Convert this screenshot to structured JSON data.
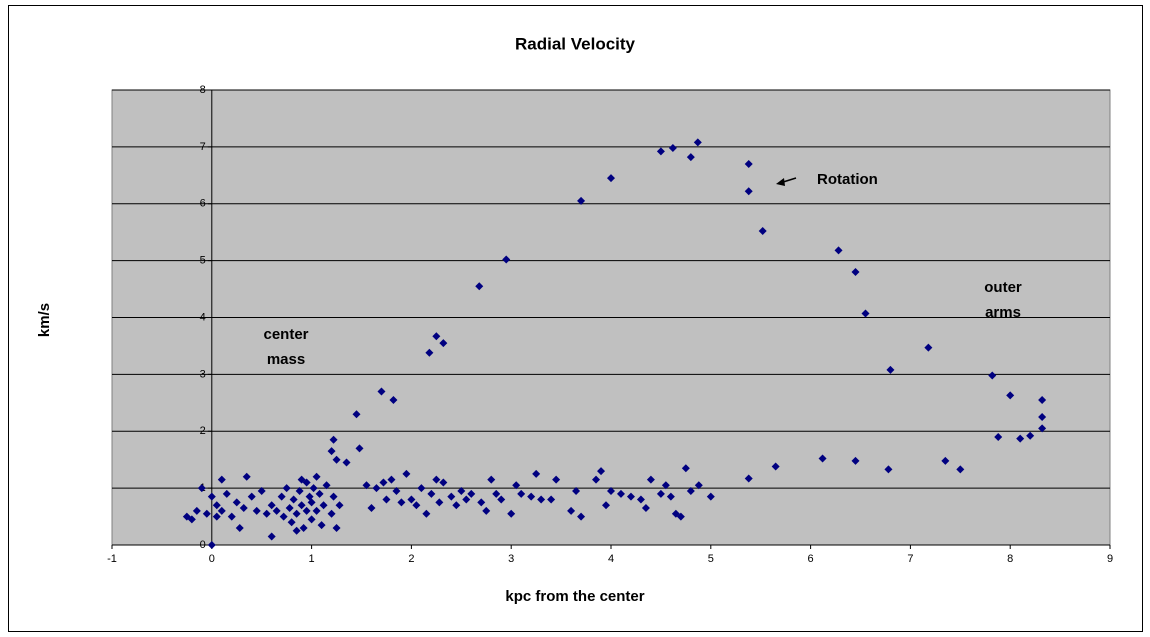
{
  "chart_data": {
    "type": "scatter",
    "title": "Radial Velocity",
    "xlabel": "kpc from the center",
    "ylabel": "km/s",
    "xlim": [
      -1,
      9
    ],
    "xticks": [
      -1,
      0,
      1,
      2,
      3,
      4,
      5,
      6,
      7,
      8,
      9
    ],
    "ylim": [
      0,
      8
    ],
    "yticks": [
      0,
      1,
      2,
      3,
      4,
      5,
      6,
      7,
      8
    ],
    "grid": true,
    "annotations": [
      {
        "text": "Rotation"
      },
      {
        "lines": [
          "outer",
          "arms"
        ]
      },
      {
        "lines": [
          "center",
          "mass"
        ]
      }
    ],
    "series": [
      {
        "color": "#000080",
        "x": [
          1.22,
          1.2,
          1.25,
          1.35,
          1.45,
          1.48,
          1.7,
          1.82,
          2.18,
          2.25,
          2.32,
          2.68,
          2.95,
          3.7,
          4.0,
          4.5,
          4.62,
          4.8,
          4.87,
          5.38,
          5.38,
          5.52,
          6.28,
          6.45,
          6.55,
          6.8,
          7.18,
          7.82,
          8.0,
          7.88,
          8.1,
          8.2,
          8.32,
          8.32,
          8.32,
          5.38,
          5.65,
          6.12,
          6.45,
          6.78,
          7.35,
          7.5,
          0,
          0.6,
          1.55,
          1.6,
          1.65,
          1.72,
          1.75,
          1.8,
          1.85,
          1.9,
          1.95,
          2.0,
          2.05,
          2.1,
          2.15,
          2.2,
          2.25,
          2.28,
          2.32,
          2.4,
          2.45,
          2.5,
          2.55,
          2.6,
          2.7,
          2.75,
          2.8,
          2.85,
          2.9,
          3.0,
          3.05,
          3.1,
          3.2,
          3.25,
          3.3,
          3.4,
          3.45,
          3.6,
          3.65,
          3.7,
          3.85,
          3.9,
          3.95,
          4.0,
          4.1,
          4.2,
          4.3,
          4.35,
          4.4,
          4.5,
          4.55,
          4.6,
          4.65,
          4.7,
          4.75,
          4.8,
          4.88,
          5.0,
          -0.25,
          -0.2,
          -0.15,
          -0.1,
          -0.05,
          0,
          0.05,
          0.05,
          0.1,
          0.1,
          0.15,
          0.2,
          0.25,
          0.28,
          0.32,
          0.35,
          0.4,
          0.45,
          0.5,
          0.55,
          0.6,
          0.65,
          0.7,
          0.72,
          0.75,
          0.78,
          0.8,
          0.82,
          0.85,
          0.88,
          0.9,
          0.92,
          0.95,
          0.95,
          0.98,
          1.0,
          1.0,
          1.02,
          1.05,
          1.08,
          1.1,
          1.12,
          1.15,
          1.2,
          1.22,
          1.25,
          1.28,
          0.85,
          0.9,
          1.05
        ],
        "values": [
          1.85,
          1.65,
          1.5,
          1.45,
          2.3,
          1.7,
          2.7,
          2.55,
          3.38,
          3.67,
          3.55,
          4.55,
          5.02,
          6.05,
          6.45,
          6.92,
          6.98,
          6.82,
          7.08,
          6.7,
          6.22,
          5.52,
          5.18,
          4.8,
          4.07,
          3.08,
          3.47,
          2.98,
          2.63,
          1.9,
          1.87,
          1.92,
          2.55,
          2.25,
          2.05,
          1.17,
          1.38,
          1.52,
          1.48,
          1.33,
          1.48,
          1.33,
          0,
          0.15,
          1.05,
          0.65,
          1.0,
          1.1,
          0.8,
          1.15,
          0.95,
          0.75,
          1.25,
          0.8,
          0.7,
          1.0,
          0.55,
          0.9,
          1.15,
          0.75,
          1.1,
          0.85,
          0.7,
          0.95,
          0.8,
          0.9,
          0.75,
          0.6,
          1.15,
          0.9,
          0.8,
          0.55,
          1.05,
          0.9,
          0.85,
          1.25,
          0.8,
          0.8,
          1.15,
          0.6,
          0.95,
          0.5,
          1.15,
          1.3,
          0.7,
          0.95,
          0.9,
          0.85,
          0.8,
          0.65,
          1.15,
          0.9,
          1.05,
          0.85,
          0.55,
          0.5,
          1.35,
          0.95,
          1.05,
          0.85,
          0.5,
          0.45,
          0.6,
          1.0,
          0.55,
          0.85,
          0.7,
          0.5,
          1.15,
          0.6,
          0.9,
          0.5,
          0.75,
          0.3,
          0.65,
          1.2,
          0.85,
          0.6,
          0.95,
          0.55,
          0.7,
          0.6,
          0.85,
          0.5,
          1.0,
          0.65,
          0.4,
          0.8,
          0.55,
          0.95,
          0.7,
          0.3,
          1.1,
          0.6,
          0.85,
          0.45,
          0.75,
          1.0,
          0.6,
          0.9,
          0.35,
          0.7,
          1.05,
          0.55,
          0.85,
          0.3,
          0.7,
          0.25,
          1.15,
          1.2
        ]
      }
    ]
  }
}
